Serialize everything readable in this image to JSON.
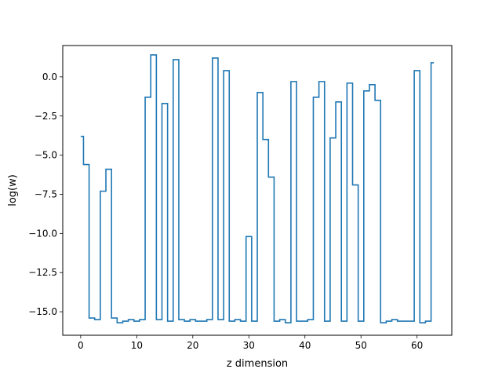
{
  "chart_data": {
    "type": "line",
    "style": "step",
    "title": "",
    "xlabel": "z dimension",
    "ylabel": "log(w)",
    "xlim": [
      -3.2,
      66.2
    ],
    "ylim": [
      -16.5,
      2.0
    ],
    "xticks": [
      0,
      10,
      20,
      30,
      40,
      50,
      60
    ],
    "xtick_labels": [
      "0",
      "10",
      "20",
      "30",
      "40",
      "50",
      "60"
    ],
    "yticks": [
      0.0,
      -2.5,
      -5.0,
      -7.5,
      -10.0,
      -12.5,
      -15.0
    ],
    "ytick_labels": [
      "0.0",
      "−2.5",
      "−5.0",
      "−7.5",
      "−10.0",
      "−12.5",
      "−15.0"
    ],
    "grid": false,
    "legend": "none",
    "series": [
      {
        "color": "#1f77b4",
        "x": [
          0,
          1,
          2,
          3,
          4,
          5,
          6,
          7,
          8,
          9,
          10,
          11,
          12,
          13,
          14,
          15,
          16,
          17,
          18,
          19,
          20,
          21,
          22,
          23,
          24,
          25,
          26,
          27,
          28,
          29,
          30,
          31,
          32,
          33,
          34,
          35,
          36,
          37,
          38,
          39,
          40,
          41,
          42,
          43,
          44,
          45,
          46,
          47,
          48,
          49,
          50,
          51,
          52,
          53,
          54,
          55,
          56,
          57,
          58,
          59,
          60,
          61,
          62,
          63
        ],
        "values": [
          -3.8,
          -5.6,
          -15.4,
          -15.5,
          -7.3,
          -5.9,
          -15.4,
          -15.7,
          -15.6,
          -15.5,
          -15.6,
          -15.5,
          -1.3,
          1.4,
          -15.5,
          -1.7,
          -15.6,
          1.1,
          -15.5,
          -15.6,
          -15.5,
          -15.6,
          -15.6,
          -15.5,
          1.2,
          -15.5,
          0.4,
          -15.6,
          -15.5,
          -15.6,
          -10.2,
          -15.6,
          -1.0,
          -4.0,
          -6.4,
          -15.6,
          -15.5,
          -15.7,
          -0.3,
          -15.6,
          -15.6,
          -15.5,
          -1.3,
          -0.3,
          -15.6,
          -3.9,
          -1.6,
          -15.6,
          -0.4,
          -6.9,
          -15.6,
          -0.9,
          -0.5,
          -1.5,
          -15.7,
          -15.6,
          -15.5,
          -15.6,
          -15.6,
          -15.6,
          0.4,
          -15.7,
          -15.6,
          0.9
        ]
      }
    ]
  }
}
